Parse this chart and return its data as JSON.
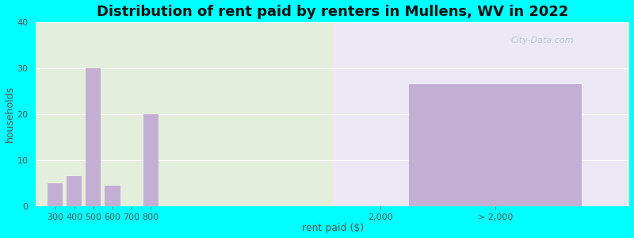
{
  "title": "Distribution of rent paid by renters in Mullens, WV in 2022",
  "xlabel": "rent paid ($)",
  "ylabel": "households",
  "bar_labels": [
    "300",
    "400",
    "500",
    "600",
    "700",
    "800",
    "2,000",
    "> 2,000"
  ],
  "bar_values": [
    5,
    6.5,
    30,
    4.5,
    0,
    20,
    0,
    26.5
  ],
  "bar_positions": [
    300,
    400,
    500,
    600,
    700,
    800,
    2000,
    2600
  ],
  "bar_widths": [
    80,
    80,
    80,
    80,
    80,
    80,
    80,
    900
  ],
  "bar_color": "#c4afd4",
  "ylim": [
    0,
    40
  ],
  "yticks": [
    0,
    10,
    20,
    30,
    40
  ],
  "xlim": [
    200,
    3300
  ],
  "xtick_positions": [
    300,
    400,
    500,
    600,
    700,
    800,
    2000,
    2600
  ],
  "xtick_labels": [
    "300",
    "400",
    "500",
    "600",
    "700",
    "800",
    "2,000",
    "> 2,000"
  ],
  "background_color": "#00ffff",
  "plot_bg_left_color": "#e4eedd",
  "plot_bg_right_color": "#ede8f5",
  "grid_color": "#ffffff",
  "split_x_data": 1750,
  "title_fontsize": 13,
  "axis_label_fontsize": 9,
  "tick_fontsize": 8,
  "watermark": "City-Data.com"
}
